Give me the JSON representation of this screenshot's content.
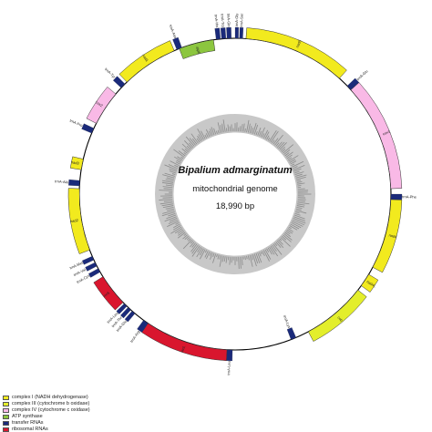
{
  "organism": "Bipalium admarginatum",
  "genome_type": "mitochondrial genome",
  "genome_size": "18,990 bp",
  "legend": [
    {
      "label": "complex I (NADH dehydrogenase)",
      "color": "#f2ea1e"
    },
    {
      "label": "complex III (cytochrome b oxidase)",
      "color": "#e3ee2b"
    },
    {
      "label": "complex IV (cytochrome c oxidase)",
      "color": "#f9b9e6"
    },
    {
      "label": "ATP synthase",
      "color": "#8cc63f"
    },
    {
      "label": "transfer RNAs",
      "color": "#1a2a7a"
    },
    {
      "label": "ribosomal RNAs",
      "color": "#d9162e"
    }
  ],
  "genes": [
    {
      "name": "trnA-Gly",
      "start": 0,
      "end": 1.2,
      "strand": "outer",
      "type": "trna"
    },
    {
      "name": "trnA-Ser",
      "start": 1.6,
      "end": 2.8,
      "strand": "outer",
      "type": "trna"
    },
    {
      "name": "nad5",
      "start": 4,
      "end": 42,
      "strand": "outer",
      "type": "nad"
    },
    {
      "name": "trnA-Glu",
      "start": 46,
      "end": 48,
      "strand": "outer",
      "type": "trna"
    },
    {
      "name": "cox1",
      "start": 48,
      "end": 88,
      "strand": "outer",
      "type": "cox"
    },
    {
      "name": "trnA-Phe",
      "start": 90,
      "end": 92,
      "strand": "outer",
      "type": "trna"
    },
    {
      "name": "nad4",
      "start": 92,
      "end": 118,
      "strand": "outer",
      "type": "nad"
    },
    {
      "name": "nad4L",
      "start": 121,
      "end": 126,
      "strand": "outer",
      "type": "nad"
    },
    {
      "name": "cob",
      "start": 128,
      "end": 152,
      "strand": "outer",
      "type": "cob"
    },
    {
      "name": "trnA-Lys",
      "start": 157,
      "end": 159,
      "strand": "inner",
      "type": "trna"
    },
    {
      "name": "trnA-Leu",
      "start": 181,
      "end": 183,
      "strand": "outer",
      "type": "trna"
    },
    {
      "name": "rrnL",
      "start": 183,
      "end": 214,
      "strand": "outer",
      "type": "rrna"
    },
    {
      "name": "trnA-Arg",
      "start": 214,
      "end": 216,
      "strand": "outer",
      "type": "trna"
    },
    {
      "name": "trnA-Glu",
      "start": 220,
      "end": 221.4,
      "strand": "outer",
      "type": "trna"
    },
    {
      "name": "trnA-Thr",
      "start": 222,
      "end": 223.4,
      "strand": "outer",
      "type": "trna"
    },
    {
      "name": "trnA-Leu",
      "start": 224,
      "end": 225.4,
      "strand": "outer",
      "type": "trna"
    },
    {
      "name": "rrnS",
      "start": 226,
      "end": 238,
      "strand": "outer",
      "type": "rrna"
    },
    {
      "name": "trnA-Cys",
      "start": 240,
      "end": 241.5,
      "strand": "outer",
      "type": "trna"
    },
    {
      "name": "trnA-Val",
      "start": 242.5,
      "end": 244,
      "strand": "outer",
      "type": "trna"
    },
    {
      "name": "trnA-Met",
      "start": 245,
      "end": 246.5,
      "strand": "outer",
      "type": "trna"
    },
    {
      "name": "nad2",
      "start": 249,
      "end": 272,
      "strand": "outer",
      "type": "nad"
    },
    {
      "name": "trnA-Ala",
      "start": 273,
      "end": 275,
      "strand": "outer",
      "type": "trna"
    },
    {
      "name": "nad3",
      "start": 279,
      "end": 283,
      "strand": "outer",
      "type": "nad"
    },
    {
      "name": "trnA-Pro",
      "start": 293,
      "end": 295,
      "strand": "outer",
      "type": "trna"
    },
    {
      "name": "cox2",
      "start": 297,
      "end": 310,
      "strand": "outer",
      "type": "cox"
    },
    {
      "name": "trnA-Tyr",
      "start": 313,
      "end": 315,
      "strand": "outer",
      "type": "trna"
    },
    {
      "name": "nad1",
      "start": 316,
      "end": 337,
      "strand": "outer",
      "type": "nad"
    },
    {
      "name": "trnA-Asn",
      "start": 338,
      "end": 340,
      "strand": "outer",
      "type": "trna"
    },
    {
      "name": "atp6",
      "start": 339,
      "end": 352,
      "strand": "inner",
      "type": "atp"
    },
    {
      "name": "trnA-His",
      "start": 353,
      "end": 354.6,
      "strand": "outer",
      "type": "trna"
    },
    {
      "name": "trnA-Trp",
      "start": 355,
      "end": 356.6,
      "strand": "outer",
      "type": "trna"
    },
    {
      "name": "trnA-Gln",
      "start": 357,
      "end": 358.6,
      "strand": "outer",
      "type": "trna"
    }
  ]
}
